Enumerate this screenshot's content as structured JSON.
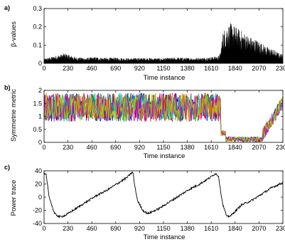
{
  "chart_data": [
    {
      "type": "area",
      "panel_label": "a)",
      "xlabel": "Time instance",
      "ylabel": "β-values",
      "xlim": [
        0,
        2300
      ],
      "ylim": [
        0,
        0.3
      ],
      "xticks": [
        "0",
        "230",
        "460",
        "690",
        "920",
        "1150",
        "1380",
        "1610",
        "1840",
        "2070",
        "2300"
      ],
      "yticks": [
        "0",
        "0.1",
        "0.2",
        "0.3"
      ],
      "grid": false,
      "series": [
        {
          "color": "#000000",
          "x": [
            0,
            100,
            200,
            300,
            400,
            500,
            600,
            700,
            800,
            900,
            1000,
            1100,
            1200,
            1300,
            1400,
            1500,
            1600,
            1680,
            1700,
            1720,
            1760,
            1800,
            1850,
            1900,
            1950,
            2000,
            2050,
            2100,
            2150,
            2200,
            2250,
            2300
          ],
          "y_peak": [
            0.025,
            0.04,
            0.055,
            0.035,
            0.03,
            0.035,
            0.03,
            0.032,
            0.028,
            0.03,
            0.03,
            0.028,
            0.03,
            0.032,
            0.03,
            0.03,
            0.035,
            0.04,
            0.06,
            0.17,
            0.21,
            0.22,
            0.2,
            0.18,
            0.16,
            0.14,
            0.13,
            0.11,
            0.09,
            0.08,
            0.06,
            0.05
          ]
        }
      ]
    },
    {
      "type": "line",
      "panel_label": "b)",
      "xlabel": "Time instance",
      "ylabel": "Symmetrie metric",
      "xlim": [
        0,
        2300
      ],
      "ylim": [
        0,
        2
      ],
      "xticks": [
        "0",
        "230",
        "460",
        "690",
        "920",
        "1150",
        "1380",
        "1610",
        "1840",
        "2070",
        "2300"
      ],
      "yticks": [
        "0",
        "0.5",
        "1",
        "1.5",
        "2"
      ],
      "grid": false,
      "series_colors": [
        "#0000ff",
        "#00a000",
        "#ff0000",
        "#00c0c0",
        "#c000c0",
        "#c0c000"
      ],
      "regime": [
        {
          "x": [
            0,
            1700
          ],
          "center": 1.35,
          "spread": 0.55
        },
        {
          "x": [
            1700,
            1750
          ],
          "center": 0.35,
          "spread": 0.1
        },
        {
          "x": [
            1750,
            2100
          ],
          "center": 0.12,
          "spread": 0.1
        },
        {
          "x": [
            2100,
            2300
          ],
          "center_start": 0.25,
          "center_end": 1.55,
          "spread": 0.25
        }
      ]
    },
    {
      "type": "line",
      "panel_label": "c)",
      "xlabel": "Time instance",
      "ylabel": "Power trace",
      "xlim": [
        0,
        2300
      ],
      "ylim": [
        -40,
        40
      ],
      "xticks": [
        "0",
        "230",
        "460",
        "690",
        "920",
        "1150",
        "1380",
        "1610",
        "1840",
        "2070",
        "2300"
      ],
      "yticks": [
        "-40",
        "-20",
        "0",
        "20",
        "40"
      ],
      "grid": false,
      "series": [
        {
          "color": "#000000",
          "x": [
            0,
            20,
            50,
            100,
            150,
            200,
            300,
            400,
            500,
            600,
            700,
            800,
            850,
            860,
            870,
            900,
            950,
            1000,
            1100,
            1200,
            1300,
            1400,
            1500,
            1600,
            1650,
            1680,
            1700,
            1720,
            1760,
            1800,
            1850,
            1900,
            2000,
            2100,
            2200,
            2300
          ],
          "y": [
            35,
            34,
            0,
            -25,
            -30,
            -28,
            -18,
            -8,
            2,
            10,
            20,
            30,
            38,
            35,
            20,
            -5,
            -20,
            -25,
            -18,
            -8,
            2,
            12,
            20,
            30,
            36,
            32,
            10,
            -10,
            -30,
            -28,
            -20,
            -12,
            -5,
            5,
            15,
            22
          ]
        }
      ]
    }
  ]
}
